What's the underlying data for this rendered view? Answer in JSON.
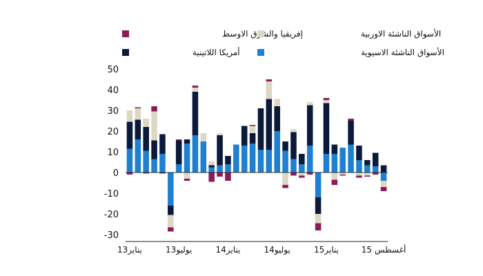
{
  "chart_data": {
    "type": "bar",
    "stacked": true,
    "ylim": [
      -30,
      50
    ],
    "yticks": [
      50,
      40,
      30,
      20,
      10,
      0,
      -10,
      -20,
      -30
    ],
    "grid": false,
    "legend": [
      {
        "label": "إفريقيا والشرق الاوسط",
        "color": "#8e1a5a",
        "series": "mea"
      },
      {
        "label": "الأسواق  الناشئة الاوربية",
        "color": "#ddd8c4",
        "series": "europe"
      },
      {
        "label": "أمريكا اللاتينية",
        "color": "#0b1a3a",
        "series": "latam"
      },
      {
        "label": "الأسواق  الناشئة الاسيوية",
        "color": "#1f7fd0",
        "series": "asia"
      }
    ],
    "x_tick_labels": [
      {
        "label": "يناير13",
        "index": 0
      },
      {
        "label": "يوليو13",
        "index": 6
      },
      {
        "label": "يناير14",
        "index": 12
      },
      {
        "label": "يوليو14",
        "index": 18
      },
      {
        "label": "يناير15",
        "index": 24
      },
      {
        "label": "أغسطس 15",
        "index": 31
      }
    ],
    "series": [
      {
        "name": "asia",
        "color": "#1f7fd0",
        "values": [
          11.5,
          16,
          10.5,
          6.5,
          9,
          -16,
          4,
          14,
          18,
          15,
          2.5,
          3.5,
          4,
          13.5,
          13,
          14,
          11,
          11,
          20,
          10.5,
          6.5,
          4,
          13,
          -12,
          9,
          9,
          12,
          13.5,
          6,
          3.5,
          3,
          -4
        ]
      },
      {
        "name": "latam",
        "color": "#0b1a3a",
        "values": [
          13,
          9.5,
          11.5,
          9,
          9.5,
          -4.5,
          11.5,
          2,
          21,
          0,
          1,
          14.5,
          4,
          0,
          9.5,
          5,
          20,
          24.5,
          12,
          4.5,
          13,
          5,
          19.5,
          -8,
          24.5,
          4.5,
          0,
          11.5,
          7,
          2.5,
          6.5,
          3.5
        ]
      },
      {
        "name": "europe",
        "color": "#ddd8c4",
        "values": [
          5.5,
          5.5,
          4,
          14,
          0,
          -6,
          0,
          -3,
          2,
          4,
          2,
          1,
          0,
          0,
          0,
          3.5,
          0,
          8.5,
          3.5,
          -6,
          1.5,
          -1.5,
          1.5,
          -4.5,
          1.5,
          -3.5,
          -1,
          0,
          -1.5,
          -1.5,
          0,
          -3
        ]
      },
      {
        "name": "mea",
        "color": "#8e1a5a",
        "values": [
          -1,
          0.5,
          -0.5,
          2.5,
          -0.5,
          -2,
          0.5,
          -1,
          1,
          0,
          -4.5,
          -2,
          -4,
          0,
          0,
          0.5,
          0,
          1,
          0,
          -1.5,
          -1.5,
          -1,
          -1,
          -3.5,
          1,
          -2.5,
          -0.5,
          1,
          -1,
          -0.5,
          -1,
          -2
        ]
      }
    ]
  }
}
